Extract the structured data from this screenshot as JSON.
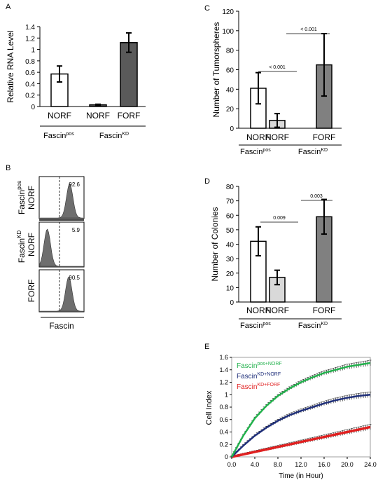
{
  "panels": {
    "A": {
      "label": "A"
    },
    "B": {
      "label": "B"
    },
    "C": {
      "label": "C"
    },
    "D": {
      "label": "D"
    },
    "E": {
      "label": "E"
    }
  },
  "chart_data": [
    {
      "panel": "A",
      "type": "bar",
      "categories": [
        "NORF",
        "NORF",
        "FORF"
      ],
      "values": [
        0.57,
        0.03,
        1.12
      ],
      "errors": [
        0.14,
        0.01,
        0.17
      ],
      "bar_colors": [
        "#ffffff",
        "#5a5a5a",
        "#5a5a5a"
      ],
      "ylabel": "Relative RNA Level",
      "ylim": [
        0,
        1.4
      ],
      "yticks": [
        "0",
        "0.2",
        "0.4",
        "0.6",
        "0.8",
        "1",
        "1.2",
        "1.4"
      ],
      "groups": [
        {
          "base": "Fascin",
          "sup": "pos"
        },
        {
          "base": "Fascin",
          "sup": "KD"
        }
      ]
    },
    {
      "panel": "B",
      "type": "histogram",
      "xlabel": "Fascin",
      "rows": [
        {
          "percent": "92.6",
          "orf": "NORF"
        },
        {
          "percent": "5.9",
          "orf": "NORF"
        },
        {
          "percent": "90.5",
          "orf": "FORF"
        }
      ],
      "groups": [
        {
          "base": "Fascin",
          "sup": "pos"
        },
        {
          "base": "Fascin",
          "sup": "KD"
        }
      ]
    },
    {
      "panel": "C",
      "type": "bar",
      "categories": [
        "NORF",
        "NORF",
        "FORF"
      ],
      "values": [
        41,
        8,
        65
      ],
      "errors": [
        16,
        7,
        32
      ],
      "bar_colors": [
        "#ffffff",
        "#d9d9d9",
        "#808080"
      ],
      "ylabel": "Number of Tumorspheres",
      "ylim": [
        0,
        120
      ],
      "yticks": [
        "0",
        "20",
        "40",
        "60",
        "80",
        "100",
        "120"
      ],
      "pvalues": [
        "< 0.001",
        "< 0.001"
      ],
      "groups": [
        {
          "base": "Fascin",
          "sup": "pos"
        },
        {
          "base": "Fascin",
          "sup": "KD"
        }
      ]
    },
    {
      "panel": "D",
      "type": "bar",
      "categories": [
        "NORF",
        "NORF",
        "FORF"
      ],
      "values": [
        42,
        17,
        59
      ],
      "errors": [
        10,
        5,
        12
      ],
      "bar_colors": [
        "#ffffff",
        "#d9d9d9",
        "#808080"
      ],
      "ylabel": "Number of Colonies",
      "ylim": [
        0,
        80
      ],
      "yticks": [
        "0",
        "10",
        "20",
        "30",
        "40",
        "50",
        "60",
        "70",
        "80"
      ],
      "pvalues": [
        "0.009",
        "0.003"
      ],
      "groups": [
        {
          "base": "Fascin",
          "sup": "pos"
        },
        {
          "base": "Fascin",
          "sup": "KD"
        }
      ]
    },
    {
      "panel": "E",
      "type": "line",
      "xlabel": "Time (in Hour)",
      "ylabel": "Cell Index",
      "xlim": [
        0,
        24
      ],
      "ylim": [
        0,
        1.6
      ],
      "xticks": [
        "0.0",
        "4.0",
        "8.0",
        "12.0",
        "16.0",
        "20.0",
        "24.0"
      ],
      "yticks": [
        "0",
        "0.2",
        "0.4",
        "0.6",
        "0.8",
        "1",
        "1.2",
        "1.4",
        "1.6"
      ],
      "series": [
        {
          "legend_base": "Fascin",
          "legend_sup": "pos+NORF",
          "color": "#22b14c",
          "x": [
            0,
            2,
            4,
            6,
            8,
            10,
            12,
            14,
            16,
            18,
            20,
            22,
            24
          ],
          "y": [
            0,
            0.34,
            0.62,
            0.82,
            0.98,
            1.1,
            1.2,
            1.28,
            1.35,
            1.4,
            1.45,
            1.48,
            1.51
          ]
        },
        {
          "legend_base": "Fascin",
          "legend_sup": "KD+NORF",
          "color": "#1f2f7a",
          "x": [
            0,
            2,
            4,
            6,
            8,
            10,
            12,
            14,
            16,
            18,
            20,
            22,
            24
          ],
          "y": [
            0,
            0.18,
            0.34,
            0.47,
            0.58,
            0.67,
            0.74,
            0.8,
            0.86,
            0.91,
            0.95,
            0.98,
            1.0
          ]
        },
        {
          "legend_base": "Fascin",
          "legend_sup": "KD+FORF",
          "color": "#e02020",
          "x": [
            0,
            2,
            4,
            6,
            8,
            10,
            12,
            14,
            16,
            18,
            20,
            22,
            24
          ],
          "y": [
            0,
            0.04,
            0.08,
            0.12,
            0.16,
            0.2,
            0.24,
            0.28,
            0.32,
            0.36,
            0.4,
            0.44,
            0.48
          ]
        }
      ]
    }
  ]
}
